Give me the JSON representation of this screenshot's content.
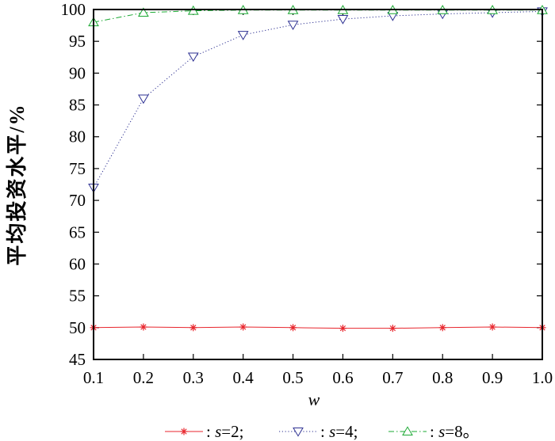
{
  "chart_data": {
    "type": "line",
    "title": "",
    "xlabel": "w",
    "ylabel": "平均投资水平/%",
    "xlim": [
      0.1,
      1.0
    ],
    "ylim": [
      45,
      100
    ],
    "x_ticks": [
      "0.1",
      "0.2",
      "0.3",
      "0.4",
      "0.5",
      "0.6",
      "0.7",
      "0.8",
      "0.9",
      "1.0"
    ],
    "y_ticks": [
      "45",
      "50",
      "55",
      "60",
      "65",
      "70",
      "75",
      "80",
      "85",
      "90",
      "95",
      "100"
    ],
    "grid": false,
    "legend_position": "bottom",
    "x": [
      0.1,
      0.2,
      0.3,
      0.4,
      0.5,
      0.6,
      0.7,
      0.8,
      0.9,
      1.0
    ],
    "series": [
      {
        "name": "s=2",
        "legend_prefix": ": ",
        "legend_var": "s",
        "legend_rest": "=2;",
        "color": "#e8262d",
        "marker": "star",
        "line_style": "solid",
        "values": [
          50.0,
          50.1,
          50.0,
          50.1,
          50.0,
          49.9,
          49.9,
          50.0,
          50.1,
          50.0
        ]
      },
      {
        "name": "s=4",
        "legend_prefix": ": ",
        "legend_var": "s",
        "legend_rest": "=4;",
        "color": "#2e3192",
        "marker": "triangle-down",
        "line_style": "dotted",
        "values": [
          72.0,
          86.0,
          92.6,
          96.0,
          97.6,
          98.5,
          99.0,
          99.3,
          99.5,
          99.7
        ]
      },
      {
        "name": "s=8",
        "legend_prefix": ": ",
        "legend_var": "s",
        "legend_rest": "=8。",
        "color": "#1aa832",
        "marker": "triangle-up",
        "line_style": "dashdot",
        "values": [
          98.0,
          99.5,
          99.8,
          99.9,
          99.9,
          99.9,
          99.9,
          99.9,
          99.9,
          99.9
        ]
      }
    ]
  }
}
